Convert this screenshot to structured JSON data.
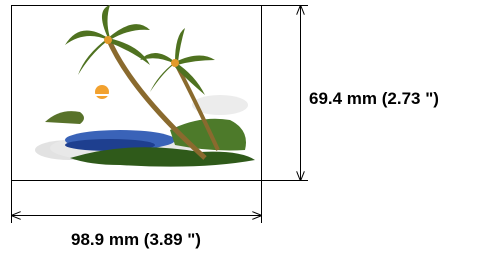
{
  "dimensions": {
    "height": "69.4 mm (2.73 \")",
    "width": "98.9 mm (3.89 \")"
  }
}
